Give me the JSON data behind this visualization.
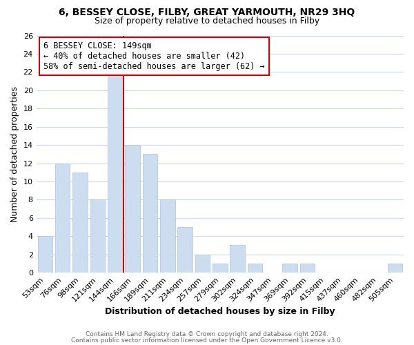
{
  "title1": "6, BESSEY CLOSE, FILBY, GREAT YARMOUTH, NR29 3HQ",
  "title2": "Size of property relative to detached houses in Filby",
  "xlabel": "Distribution of detached houses by size in Filby",
  "ylabel": "Number of detached properties",
  "bar_labels": [
    "53sqm",
    "76sqm",
    "98sqm",
    "121sqm",
    "144sqm",
    "166sqm",
    "189sqm",
    "211sqm",
    "234sqm",
    "257sqm",
    "279sqm",
    "302sqm",
    "324sqm",
    "347sqm",
    "369sqm",
    "392sqm",
    "415sqm",
    "437sqm",
    "460sqm",
    "482sqm",
    "505sqm"
  ],
  "bar_values": [
    4,
    12,
    11,
    8,
    22,
    14,
    13,
    8,
    5,
    2,
    1,
    3,
    1,
    0,
    1,
    1,
    0,
    0,
    0,
    0,
    1
  ],
  "bar_color": "#ccddf0",
  "bar_edge_color": "#aac4e0",
  "highlight_line_index": 5,
  "highlight_line_color": "#cc0000",
  "ylim": [
    0,
    26
  ],
  "yticks": [
    0,
    2,
    4,
    6,
    8,
    10,
    12,
    14,
    16,
    18,
    20,
    22,
    24,
    26
  ],
  "annotation_title": "6 BESSEY CLOSE: 149sqm",
  "annotation_line1": "← 40% of detached houses are smaller (42)",
  "annotation_line2": "58% of semi-detached houses are larger (62) →",
  "footer1": "Contains HM Land Registry data © Crown copyright and database right 2024.",
  "footer2": "Contains public sector information licensed under the Open Government Licence v3.0.",
  "background_color": "#ffffff",
  "grid_color": "#ccd8ec",
  "annotation_box_color": "#ffffff",
  "annotation_box_edge": "#cc0000",
  "title1_fontsize": 10,
  "title2_fontsize": 9,
  "xlabel_fontsize": 9,
  "ylabel_fontsize": 9,
  "tick_fontsize": 8,
  "annotation_fontsize": 8.5
}
